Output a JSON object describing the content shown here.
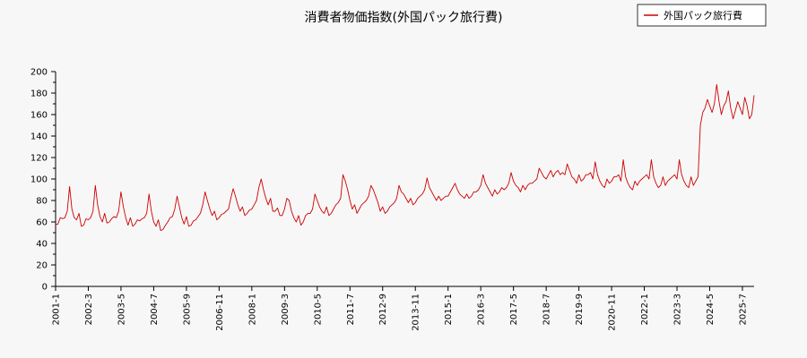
{
  "chart_data": {
    "type": "line",
    "title": "消費者物価指数(外国パック旅行費)",
    "xlabel": "",
    "ylabel": "",
    "ylim": [
      0,
      200
    ],
    "yticks": [
      0,
      20,
      40,
      60,
      80,
      100,
      120,
      140,
      160,
      180,
      200
    ],
    "xtick_labels": [
      "2001-1",
      "2002-3",
      "2003-5",
      "2004-7",
      "2005-9",
      "2006-11",
      "2008-1",
      "2009-3",
      "2010-5",
      "2011-7",
      "2012-9",
      "2013-11",
      "2015-1",
      "2016-3",
      "2017-5",
      "2018-7",
      "2019-9",
      "2020-11",
      "2022-1",
      "2023-3",
      "2024-5",
      "2025-7"
    ],
    "x_start": "2001-01",
    "x_end": "2025-12",
    "grid": false,
    "legend_position": "top-right",
    "colors": {
      "series": "#cc0000",
      "axis": "#000000",
      "background": "#f7f7f7"
    },
    "series": [
      {
        "name": "外国パック旅行費",
        "values": [
          58,
          58,
          64,
          63,
          64,
          70,
          93,
          72,
          64,
          62,
          68,
          56,
          57,
          63,
          62,
          64,
          70,
          94,
          76,
          65,
          60,
          68,
          59,
          60,
          63,
          65,
          64,
          70,
          88,
          74,
          64,
          57,
          64,
          56,
          58,
          62,
          61,
          63,
          64,
          68,
          86,
          70,
          60,
          56,
          62,
          52,
          53,
          57,
          60,
          64,
          65,
          72,
          84,
          74,
          64,
          58,
          65,
          56,
          57,
          61,
          62,
          65,
          68,
          76,
          88,
          80,
          72,
          66,
          70,
          62,
          64,
          67,
          68,
          70,
          72,
          82,
          91,
          84,
          76,
          70,
          74,
          66,
          68,
          71,
          72,
          76,
          80,
          92,
          100,
          90,
          82,
          76,
          82,
          70,
          70,
          73,
          66,
          66,
          72,
          82,
          80,
          70,
          64,
          60,
          66,
          57,
          60,
          66,
          68,
          68,
          72,
          86,
          80,
          74,
          70,
          68,
          74,
          66,
          68,
          72,
          76,
          78,
          82,
          104,
          98,
          90,
          80,
          72,
          76,
          68,
          72,
          76,
          78,
          80,
          84,
          94,
          90,
          84,
          78,
          70,
          74,
          68,
          70,
          74,
          76,
          78,
          82,
          94,
          88,
          86,
          82,
          78,
          82,
          76,
          78,
          82,
          84,
          86,
          90,
          101,
          92,
          88,
          84,
          80,
          84,
          80,
          82,
          84,
          84,
          88,
          92,
          96,
          90,
          86,
          84,
          82,
          86,
          82,
          84,
          88,
          88,
          90,
          94,
          104,
          96,
          92,
          88,
          84,
          90,
          86,
          88,
          92,
          90,
          92,
          96,
          106,
          98,
          94,
          92,
          88,
          94,
          90,
          94,
          96,
          96,
          98,
          100,
          110,
          106,
          102,
          100,
          104,
          108,
          102,
          106,
          108,
          104,
          106,
          104,
          114,
          108,
          102,
          100,
          96,
          104,
          98,
          100,
          104,
          104,
          106,
          100,
          116,
          104,
          98,
          94,
          92,
          100,
          96,
          98,
          102,
          102,
          104,
          98,
          118,
          102,
          96,
          92,
          90,
          98,
          94,
          98,
          100,
          102,
          104,
          100,
          118,
          102,
          96,
          92,
          94,
          102,
          94,
          98,
          100,
          102,
          104,
          100,
          118,
          104,
          98,
          94,
          92,
          102,
          94,
          98,
          102,
          150,
          162,
          166,
          174,
          168,
          162,
          170,
          188,
          172,
          160,
          168,
          172,
          182,
          166,
          156,
          164,
          172,
          166,
          160,
          176,
          168,
          156,
          160,
          178
        ]
      }
    ]
  }
}
